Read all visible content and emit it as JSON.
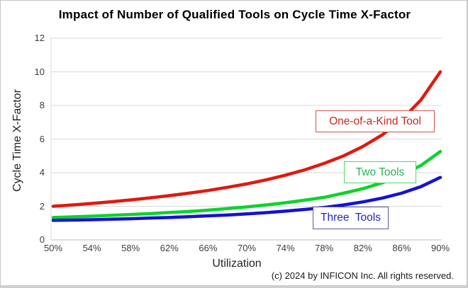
{
  "title": "Impact of Number of Qualified Tools on Cycle Time X-Factor",
  "footer": {
    "copyright": "(c) 2024 by INFICON Inc. All rights reserved."
  },
  "chart_data": {
    "type": "line",
    "title": "Impact of Number of Qualified Tools on Cycle Time X-Factor",
    "xlabel": "Utilization",
    "ylabel": "Cycle Time X-Factor",
    "ylim": [
      0,
      12
    ],
    "y_ticks": [
      0,
      2,
      4,
      6,
      8,
      10,
      12
    ],
    "x_tick_labels": [
      "50%",
      "54%",
      "58%",
      "62%",
      "66%",
      "70%",
      "74%",
      "78%",
      "82%",
      "86%",
      "90%"
    ],
    "x_tick_values": [
      50,
      54,
      58,
      62,
      66,
      70,
      74,
      78,
      82,
      86,
      90
    ],
    "grid": "horizontal",
    "legend_position": "inline-annotation-boxes",
    "x": [
      50,
      52,
      54,
      56,
      58,
      60,
      62,
      64,
      66,
      68,
      70,
      72,
      74,
      76,
      78,
      80,
      82,
      84,
      86,
      88,
      90
    ],
    "x_unit": "percent utilization",
    "series": [
      {
        "name": "One-of-a-Kind Tool",
        "color": "#e0190f",
        "label_color": "#c8281e",
        "box_border_color": "#c9544a",
        "values": [
          2.0,
          2.08,
          2.17,
          2.27,
          2.38,
          2.5,
          2.63,
          2.78,
          2.94,
          3.13,
          3.33,
          3.57,
          3.85,
          4.17,
          4.55,
          5.0,
          5.56,
          6.25,
          7.14,
          8.33,
          10.0
        ]
      },
      {
        "name": "Two Tools",
        "color": "#0bd42a",
        "label_color": "#28b157",
        "box_border_color": "#4cd964",
        "values": [
          1.33,
          1.37,
          1.41,
          1.46,
          1.51,
          1.56,
          1.63,
          1.69,
          1.77,
          1.86,
          1.96,
          2.08,
          2.21,
          2.36,
          2.53,
          2.78,
          3.05,
          3.4,
          3.84,
          4.43,
          5.26
        ]
      },
      {
        "name": "Three  Tools",
        "color": "#1412d4",
        "label_color": "#2424cc",
        "box_border_color": "#5a5aa5",
        "values": [
          1.16,
          1.18,
          1.2,
          1.23,
          1.26,
          1.3,
          1.33,
          1.38,
          1.43,
          1.48,
          1.55,
          1.62,
          1.71,
          1.81,
          1.93,
          2.08,
          2.26,
          2.49,
          2.78,
          3.17,
          3.72
        ]
      }
    ]
  }
}
